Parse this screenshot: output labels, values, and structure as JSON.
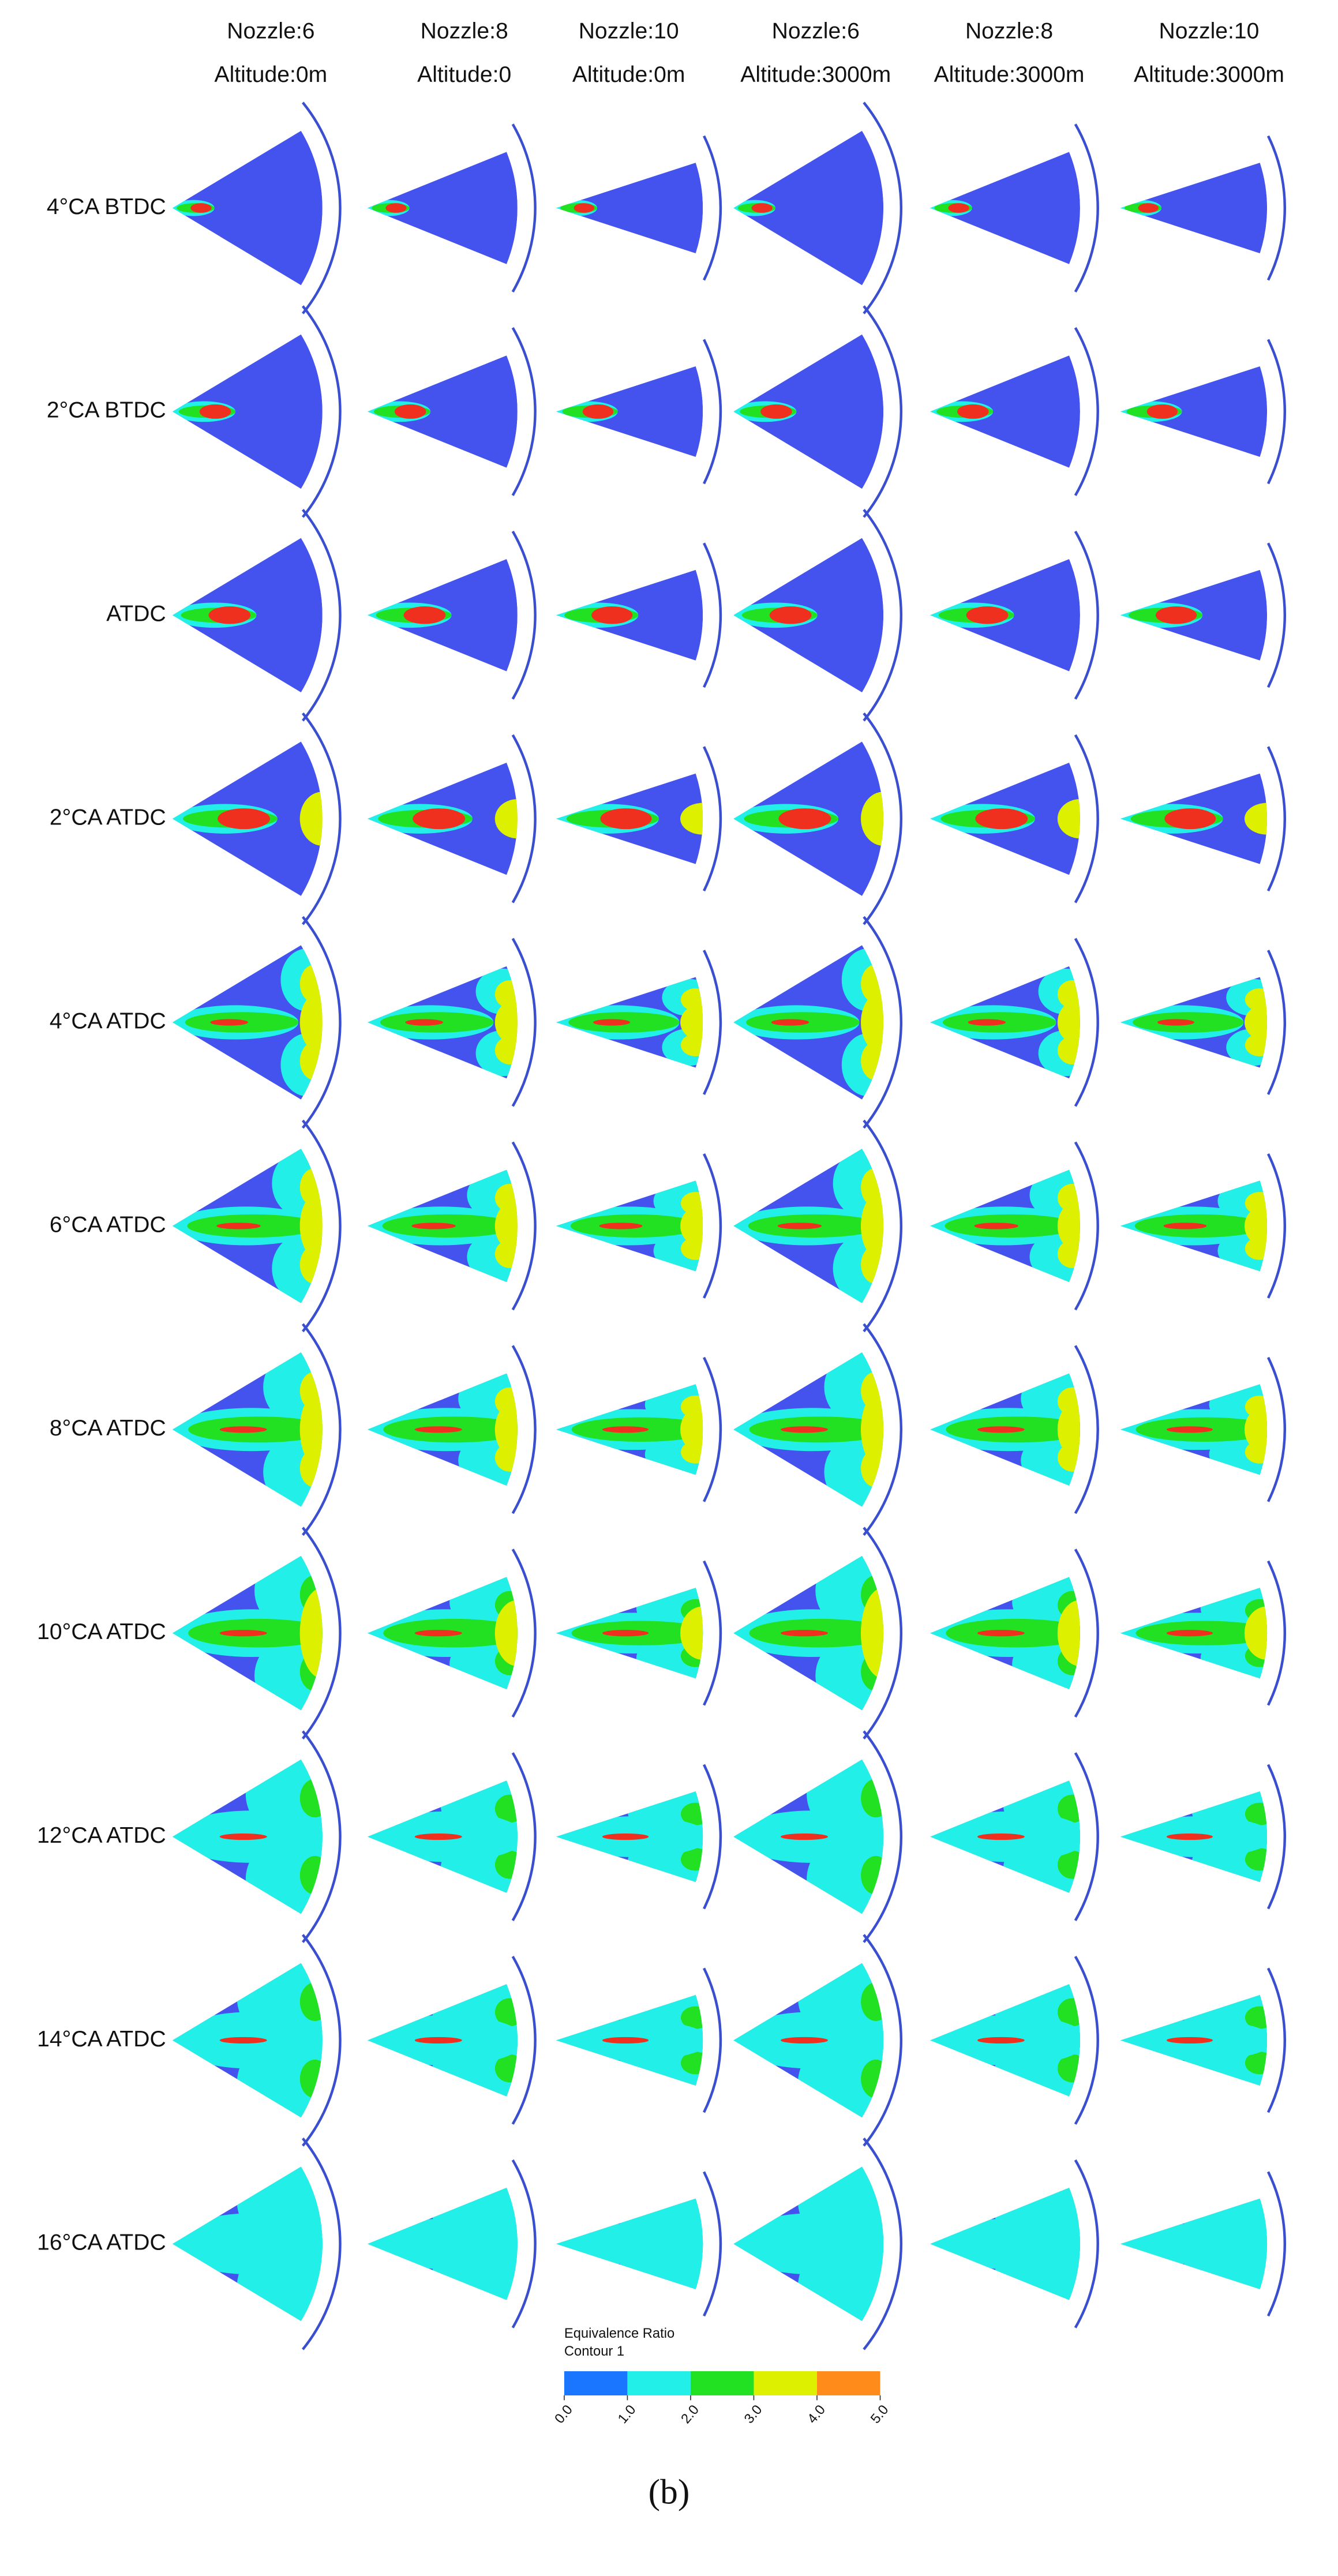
{
  "columns": [
    {
      "nozzle": "Nozzle:6",
      "altitude": "Altitude:0m"
    },
    {
      "nozzle": "Nozzle:8",
      "altitude": "Altitude:0"
    },
    {
      "nozzle": "Nozzle:10",
      "altitude": "Altitude:0m"
    },
    {
      "nozzle": "Nozzle:6",
      "altitude": "Altitude:3000m"
    },
    {
      "nozzle": "Nozzle:8",
      "altitude": "Altitude:3000m"
    },
    {
      "nozzle": "Nozzle:10",
      "altitude": "Altitude:3000m"
    }
  ],
  "rows": [
    "4°CA BTDC",
    "2°CA BTDC",
    "ATDC",
    "2°CA ATDC",
    "4°CA ATDC",
    "6°CA ATDC",
    "8°CA ATDC",
    "10°CA ATDC",
    "12°CA ATDC",
    "14°CA ATDC",
    "16°CA ATDC"
  ],
  "legend": {
    "title": "Equivalence Ratio",
    "subtitle": "Contour 1",
    "lim": [
      0,
      5
    ],
    "ticks": [
      {
        "value": 0,
        "label": "0.0"
      },
      {
        "value": 1,
        "label": "1.0"
      },
      {
        "value": 2,
        "label": "2.0"
      },
      {
        "value": 3,
        "label": "3.0"
      },
      {
        "value": 4,
        "label": "4.0"
      },
      {
        "value": 5,
        "label": "5.0"
      }
    ],
    "colors": [
      "#1a75ff",
      "#22f0e8",
      "#22e022",
      "#ddf000",
      "#ff8c1a"
    ]
  },
  "caption": "(b)"
}
